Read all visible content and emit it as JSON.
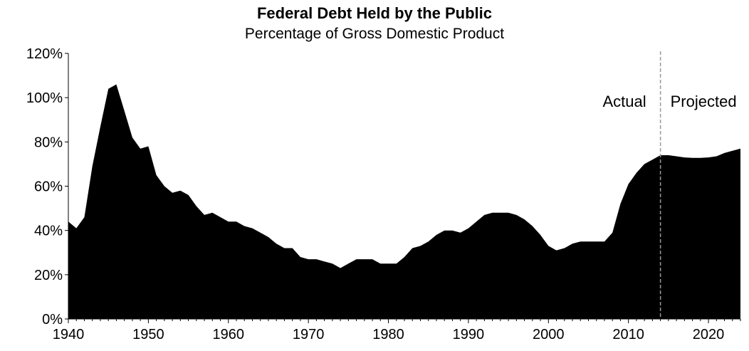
{
  "chart_data": {
    "type": "area",
    "title": "Federal Debt Held by the Public",
    "subtitle": "Percentage of Gross Domestic Product",
    "xlabel": "",
    "ylabel": "",
    "xlim": [
      1940,
      2024
    ],
    "ylim": [
      0,
      120
    ],
    "x_ticks": [
      "1940",
      "1950",
      "1960",
      "1970",
      "1980",
      "1990",
      "2000",
      "2010",
      "2020"
    ],
    "y_ticks": [
      "0%",
      "20%",
      "40%",
      "60%",
      "80%",
      "100%",
      "120%"
    ],
    "fill_color": "#000000",
    "divider": {
      "x": 2014,
      "style": "dashed",
      "color": "#999999"
    },
    "annotations": [
      {
        "text": "Actual",
        "side": "left"
      },
      {
        "text": "Projected",
        "side": "right"
      }
    ],
    "x": [
      1940,
      1941,
      1942,
      1943,
      1944,
      1945,
      1946,
      1947,
      1948,
      1949,
      1950,
      1951,
      1952,
      1953,
      1954,
      1955,
      1956,
      1957,
      1958,
      1959,
      1960,
      1961,
      1962,
      1963,
      1964,
      1965,
      1966,
      1967,
      1968,
      1969,
      1970,
      1971,
      1972,
      1973,
      1974,
      1975,
      1976,
      1977,
      1978,
      1979,
      1980,
      1981,
      1982,
      1983,
      1984,
      1985,
      1986,
      1987,
      1988,
      1989,
      1990,
      1991,
      1992,
      1993,
      1994,
      1995,
      1996,
      1997,
      1998,
      1999,
      2000,
      2001,
      2002,
      2003,
      2004,
      2005,
      2006,
      2007,
      2008,
      2009,
      2010,
      2011,
      2012,
      2013,
      2014,
      2015,
      2016,
      2017,
      2018,
      2019,
      2020,
      2021,
      2022,
      2023,
      2024
    ],
    "series": [
      {
        "values": [
          44,
          41,
          46,
          69,
          87,
          104,
          106,
          94,
          82,
          77,
          78,
          65,
          60,
          57,
          58,
          56,
          51,
          47,
          48,
          46,
          44,
          44,
          42,
          41,
          39,
          37,
          34,
          32,
          32,
          28,
          27,
          27,
          26,
          25,
          23,
          25,
          27,
          27,
          27,
          25,
          25,
          25,
          28,
          32,
          33,
          35,
          38,
          40,
          40,
          39,
          41,
          44,
          47,
          48,
          48,
          48,
          47,
          45,
          42,
          38,
          33,
          31,
          32,
          34,
          35,
          35,
          35,
          35,
          39,
          52,
          61,
          66,
          70,
          72,
          74,
          74,
          73.5,
          73,
          72.8,
          72.8,
          73,
          73.5,
          75,
          76,
          77
        ]
      }
    ]
  }
}
